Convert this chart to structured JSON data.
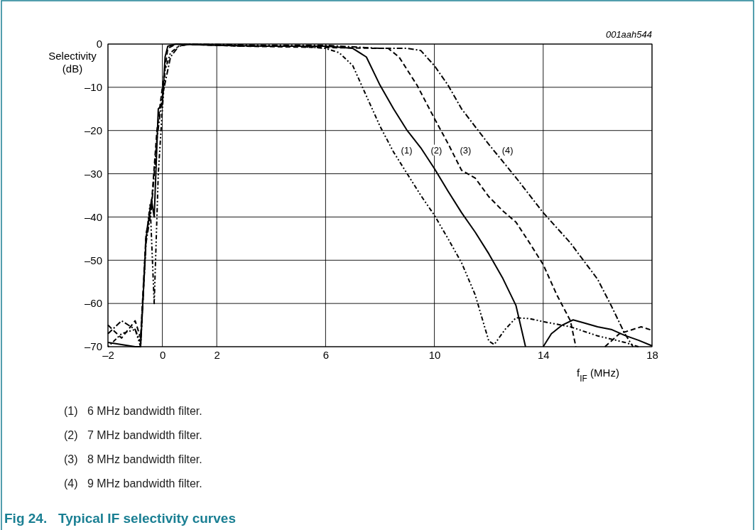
{
  "chart_data": {
    "type": "line",
    "title": "Fig 24.   Typical IF selectivity curves",
    "xlabel": "f$_{IF}$ (MHz)",
    "ylabel": "Selectivity\n(dB)",
    "xlim": [
      -2,
      18
    ],
    "xticks": [
      {
        "value": -2,
        "label": "–2"
      },
      0,
      2,
      6,
      10,
      14,
      18
    ],
    "ylim": [
      -70,
      0
    ],
    "yticks": [
      {
        "value": -70,
        "label": "–70"
      },
      {
        "value": -60,
        "label": "–60"
      },
      {
        "value": -50,
        "label": "–50"
      },
      {
        "value": -40,
        "label": "–40"
      },
      {
        "value": -30,
        "label": "–30"
      },
      {
        "value": -20,
        "label": "–20"
      },
      {
        "value": -10,
        "label": "–10"
      },
      0
    ],
    "grid": true,
    "marker": "none",
    "series": [
      {
        "name": "(1)",
        "color": "#000000",
        "line_style": "dotted",
        "x": [
          -2,
          -1.5,
          -1,
          -0.8,
          -0.6,
          -0.45,
          -0.3,
          -0.15,
          0,
          0.1,
          0.3,
          0.6,
          1,
          3,
          5,
          6,
          6.5,
          7,
          7.5,
          8,
          8.5,
          9,
          9.5,
          10,
          10.5,
          11,
          11.5,
          12,
          12.2,
          12.6,
          13,
          13.5,
          14,
          15,
          16,
          17,
          17.5
        ],
        "values": [
          -70,
          -67,
          -66,
          -70,
          -45,
          -37,
          -60,
          -30,
          -15,
          -6,
          -2,
          -0.5,
          0,
          -0.5,
          -0.5,
          -1,
          -2,
          -5,
          -12,
          -19,
          -25,
          -30,
          -35,
          -39.6,
          -45,
          -50.6,
          -58,
          -68.7,
          -69.5,
          -66,
          -63.3,
          -63.5,
          -64.2,
          -65.4,
          -67.5,
          -69,
          -70
        ]
      },
      {
        "name": "(2)",
        "color": "#000000",
        "line_style": "solid",
        "x": [
          -2,
          -1,
          -0.8,
          -0.6,
          -0.4,
          -0.3,
          -0.15,
          0,
          0.1,
          0.2,
          0.5,
          2,
          4,
          6,
          7,
          7.5,
          8,
          8.5,
          9,
          9.5,
          10,
          10.5,
          11,
          11.5,
          12,
          12.5,
          13,
          13.35,
          13.7,
          14,
          14.3,
          14.7,
          15.1,
          15.5,
          16,
          16.5,
          17,
          17.5,
          18
        ],
        "values": [
          -69,
          -70,
          -70,
          -45,
          -36,
          -40,
          -15,
          -14,
          -3,
          -0.5,
          0,
          -0.3,
          -0.5,
          -0.5,
          -1,
          -3,
          -9.5,
          -15,
          -20,
          -24,
          -28.8,
          -34,
          -39,
          -43.5,
          -48.5,
          -54,
          -60.5,
          -70,
          null,
          -70,
          -67,
          -65,
          -63.8,
          -64.5,
          -65.4,
          -66,
          -67.4,
          -68.5,
          -69.8
        ]
      },
      {
        "name": "(3)",
        "color": "#000000",
        "line_style": "dashed",
        "x": [
          -2,
          -1.5,
          -1,
          -0.8,
          -0.6,
          -0.4,
          -0.2,
          0,
          0.2,
          0.5,
          3,
          6,
          8,
          8.3,
          8.7,
          9.36,
          10,
          10.5,
          11,
          11.5,
          12,
          12.5,
          13,
          13.5,
          14,
          14.5,
          15,
          15.2,
          15.8,
          16.27,
          16.8,
          17.6,
          18
        ],
        "values": [
          -65,
          -68,
          -64,
          -68,
          -44,
          -37,
          -20,
          -10,
          -1,
          0,
          -0.5,
          -0.8,
          -1,
          -1,
          -3,
          -9.5,
          -17.2,
          -23,
          -29.2,
          -31,
          -35.3,
          -38.5,
          -41.2,
          -46,
          -51,
          -58,
          -64,
          -70,
          null,
          -70,
          -67,
          -65.4,
          -66.2
        ]
      },
      {
        "name": "(4)",
        "color": "#000000",
        "line_style": "dashdot",
        "x": [
          -2,
          -1.5,
          -1,
          -0.8,
          -0.6,
          -0.4,
          -0.2,
          0,
          0.3,
          0.6,
          1,
          4,
          6,
          8,
          9,
          9.5,
          10,
          10.5,
          11,
          12,
          13,
          14,
          15,
          16,
          16.5,
          17,
          17.3
        ],
        "values": [
          -67,
          -64,
          -66,
          -69,
          -46,
          -38,
          -22,
          -12,
          -3,
          -0.5,
          0,
          -0.3,
          -0.3,
          -1,
          -1,
          -1.5,
          -5,
          -9.5,
          -15,
          -23.2,
          -30.9,
          -39,
          -46,
          -54.4,
          -60.5,
          -67,
          -70
        ]
      }
    ],
    "annotations": [
      "001aah544",
      "(1)   6 MHz bandwidth filter.",
      "(2)   7 MHz bandwidth filter.",
      "(3)   8 MHz bandwidth filter.",
      "(4)   9 MHz bandwidth filter."
    ]
  }
}
